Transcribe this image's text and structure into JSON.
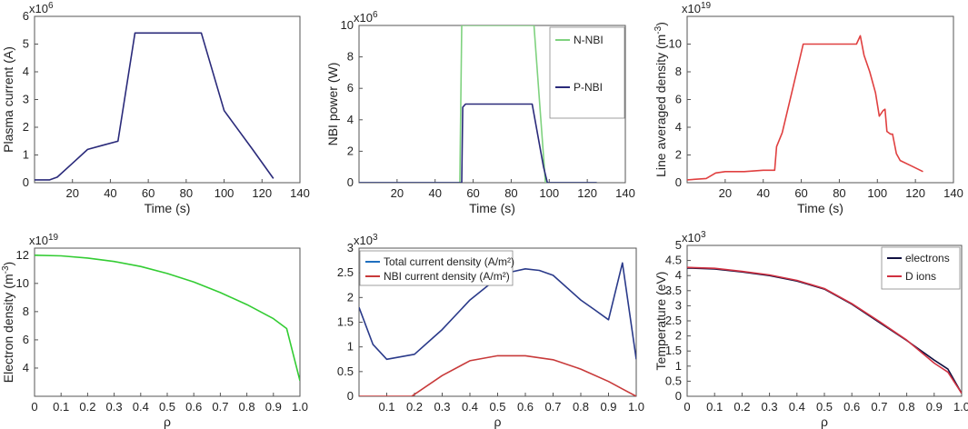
{
  "chart_data": [
    {
      "id": "p1",
      "type": "line",
      "xlabel": "Time (s)",
      "ylabel": "Plasma current (A)",
      "multiplier": "x10^6",
      "xlim": [
        0,
        140
      ],
      "ylim": [
        0,
        6
      ],
      "xticks": [
        20,
        40,
        60,
        80,
        100,
        120,
        140
      ],
      "yticks": [
        0,
        1,
        2,
        3,
        4,
        5,
        6
      ],
      "series": [
        {
          "name": "Plasma current",
          "color": "#2a2a7a",
          "x": [
            0,
            8,
            12,
            20,
            28,
            36,
            44,
            53,
            60,
            70,
            80,
            88,
            100,
            115,
            126
          ],
          "y": [
            0.1,
            0.1,
            0.2,
            0.7,
            1.2,
            1.35,
            1.5,
            5.4,
            5.4,
            5.4,
            5.4,
            5.4,
            2.6,
            1.2,
            0.15
          ]
        }
      ]
    },
    {
      "id": "p2",
      "type": "line",
      "xlabel": "Time (s)",
      "ylabel": "NBI power (W)",
      "multiplier": "x10^6",
      "xlim": [
        0,
        140
      ],
      "ylim": [
        0,
        10
      ],
      "xticks": [
        20,
        40,
        60,
        80,
        100,
        120,
        140
      ],
      "yticks": [
        0,
        2,
        4,
        6,
        8,
        10
      ],
      "legend": "top-right",
      "series": [
        {
          "name": "N-NBI",
          "color": "#7fd27f",
          "x": [
            0,
            53,
            54,
            92,
            98,
            125
          ],
          "y": [
            0,
            0,
            10,
            10,
            0,
            0
          ]
        },
        {
          "name": "P-NBI",
          "color": "#2a2a7a",
          "x": [
            0,
            54,
            54.5,
            56,
            91,
            97,
            99,
            125
          ],
          "y": [
            0,
            0,
            4.8,
            5,
            5,
            1,
            0,
            0
          ]
        }
      ]
    },
    {
      "id": "p3",
      "type": "line",
      "xlabel": "Time (s)",
      "ylabel": "Line averaged density (m^-3)",
      "multiplier": "x10^19",
      "xlim": [
        0,
        140
      ],
      "ylim": [
        0,
        12
      ],
      "xticks": [
        20,
        40,
        60,
        80,
        100,
        120,
        140
      ],
      "yticks": [
        0,
        2,
        4,
        6,
        8,
        10
      ],
      "series": [
        {
          "name": "Line averaged density",
          "color": "#e04040",
          "x": [
            0,
            10,
            15,
            20,
            30,
            40,
            46,
            47,
            50,
            55,
            61,
            70,
            80,
            89,
            91,
            93,
            96,
            99,
            101,
            103,
            104,
            105,
            107,
            108,
            110,
            112,
            118,
            124
          ],
          "y": [
            0.2,
            0.3,
            0.7,
            0.8,
            0.8,
            0.9,
            0.9,
            2.6,
            3.6,
            6.5,
            10,
            10,
            10,
            10,
            10.6,
            9.2,
            8,
            6.5,
            4.8,
            5.2,
            5.3,
            3.7,
            3.5,
            3.5,
            2.1,
            1.6,
            1.2,
            0.8
          ]
        }
      ]
    },
    {
      "id": "p4",
      "type": "line",
      "xlabel": "ρ",
      "ylabel": "Electron density (m^-3)",
      "multiplier": "x10^19",
      "xlim": [
        0,
        1
      ],
      "ylim": [
        2,
        12.5
      ],
      "xticks": [
        0,
        0.1,
        0.2,
        0.3,
        0.4,
        0.5,
        0.6,
        0.7,
        0.8,
        0.9,
        1.0
      ],
      "xticklabels": [
        "0",
        "0.1",
        "0.2",
        "0.3",
        "0.4",
        "0.5",
        "0.6",
        "0.7",
        "0.8",
        "0.9",
        "1.0"
      ],
      "yticks": [
        4,
        6,
        8,
        10,
        12
      ],
      "series": [
        {
          "name": "Electron density",
          "color": "#33cc33",
          "x": [
            0,
            0.1,
            0.2,
            0.3,
            0.4,
            0.5,
            0.6,
            0.7,
            0.8,
            0.9,
            0.95,
            1.0
          ],
          "y": [
            12.0,
            11.95,
            11.8,
            11.55,
            11.2,
            10.7,
            10.1,
            9.35,
            8.5,
            7.5,
            6.8,
            3.1
          ]
        }
      ]
    },
    {
      "id": "p5",
      "type": "line",
      "xlabel": "ρ",
      "ylabel": "",
      "multiplier": "x10^3",
      "xlim": [
        0,
        1
      ],
      "ylim": [
        0,
        3
      ],
      "xticks": [
        0.1,
        0.2,
        0.3,
        0.4,
        0.5,
        0.6,
        0.7,
        0.8,
        0.9,
        1.0
      ],
      "xticklabels": [
        "0.1",
        "0.2",
        "0.3",
        "0.4",
        "0.5",
        "0.6",
        "0.7",
        "0.8",
        "0.9",
        "1.0"
      ],
      "yticks": [
        0,
        0.5,
        1,
        1.5,
        2,
        2.5,
        3
      ],
      "legend": "top-left",
      "series": [
        {
          "name": "Total current density (A/m²)",
          "color": "#2a3a8a",
          "legendColor": "#1f6fbf",
          "x": [
            0,
            0.05,
            0.1,
            0.2,
            0.3,
            0.4,
            0.5,
            0.55,
            0.6,
            0.65,
            0.7,
            0.8,
            0.85,
            0.9,
            0.95,
            1.0
          ],
          "y": [
            1.8,
            1.05,
            0.75,
            0.85,
            1.35,
            1.95,
            2.4,
            2.52,
            2.58,
            2.55,
            2.45,
            1.95,
            1.75,
            1.55,
            2.7,
            0.75
          ]
        },
        {
          "name": "NBI current density (A/m²)",
          "color": "#c83a3a",
          "x": [
            0,
            0.1,
            0.19,
            0.3,
            0.4,
            0.5,
            0.6,
            0.7,
            0.8,
            0.9,
            0.95,
            1.0
          ],
          "y": [
            0,
            0,
            0,
            0.42,
            0.72,
            0.82,
            0.82,
            0.74,
            0.55,
            0.3,
            0.15,
            0
          ]
        }
      ]
    },
    {
      "id": "p6",
      "type": "line",
      "xlabel": "ρ",
      "ylabel": "Temperature (eV)",
      "multiplier": "x10^3",
      "xlim": [
        0,
        1
      ],
      "ylim": [
        0,
        5
      ],
      "xticks": [
        0,
        0.1,
        0.2,
        0.3,
        0.4,
        0.5,
        0.6,
        0.7,
        0.8,
        0.9,
        1.0
      ],
      "xticklabels": [
        "0",
        "0.1",
        "0.2",
        "0.3",
        "0.4",
        "0.5",
        "0.6",
        "0.7",
        "0.8",
        "0.9",
        "1.0"
      ],
      "yticks": [
        0,
        0.5,
        1,
        1.5,
        2,
        2.5,
        3,
        3.5,
        4,
        4.5,
        5
      ],
      "legend": "top-right",
      "series": [
        {
          "name": "electrons",
          "color": "#101040",
          "x": [
            0,
            0.1,
            0.2,
            0.3,
            0.4,
            0.5,
            0.6,
            0.7,
            0.8,
            0.9,
            0.95,
            1.0
          ],
          "y": [
            4.25,
            4.22,
            4.12,
            4.0,
            3.82,
            3.55,
            3.05,
            2.45,
            1.85,
            1.2,
            0.9,
            0.1
          ]
        },
        {
          "name": "D ions",
          "color": "#d03040",
          "x": [
            0,
            0.1,
            0.2,
            0.3,
            0.4,
            0.5,
            0.6,
            0.7,
            0.8,
            0.9,
            0.95,
            1.0
          ],
          "y": [
            4.27,
            4.24,
            4.14,
            4.02,
            3.84,
            3.57,
            3.07,
            2.48,
            1.86,
            1.1,
            0.8,
            0.1
          ]
        }
      ]
    }
  ]
}
